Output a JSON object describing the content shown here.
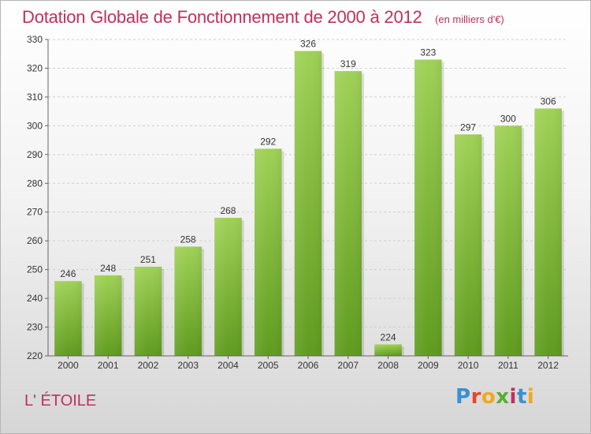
{
  "header": {
    "title": "Dotation Globale de Fonctionnement de 2000 à 2012",
    "unit": "(en milliers d'€)"
  },
  "footer": {
    "commune": "L' ÉTOILE",
    "logo_letters": [
      "P",
      "r",
      "o",
      "x",
      "i",
      "t",
      "i"
    ],
    "logo_colors": [
      "#3a8fd1",
      "#e8452c",
      "#f2a81d",
      "#5aae32",
      "#c0305a",
      "#3a8fd1",
      "#f2a81d"
    ]
  },
  "colors": {
    "bar_light": "#9fd156",
    "bar_dark": "#5f9b1e",
    "title": "#c0305a",
    "axis": "#666666",
    "grid": "#d0d0d0"
  },
  "chart_data": {
    "type": "bar",
    "categories": [
      "2000",
      "2001",
      "2002",
      "2003",
      "2004",
      "2005",
      "2006",
      "2007",
      "2008",
      "2009",
      "2010",
      "2011",
      "2012"
    ],
    "values": [
      246,
      248,
      251,
      258,
      268,
      292,
      326,
      319,
      224,
      323,
      297,
      300,
      306
    ],
    "title": "Dotation Globale de Fonctionnement de 2000 à 2012",
    "ylim": [
      220,
      330
    ],
    "yticks": [
      220,
      230,
      240,
      250,
      260,
      270,
      280,
      290,
      300,
      310,
      320,
      330
    ],
    "grid": true,
    "data_labels": true
  }
}
